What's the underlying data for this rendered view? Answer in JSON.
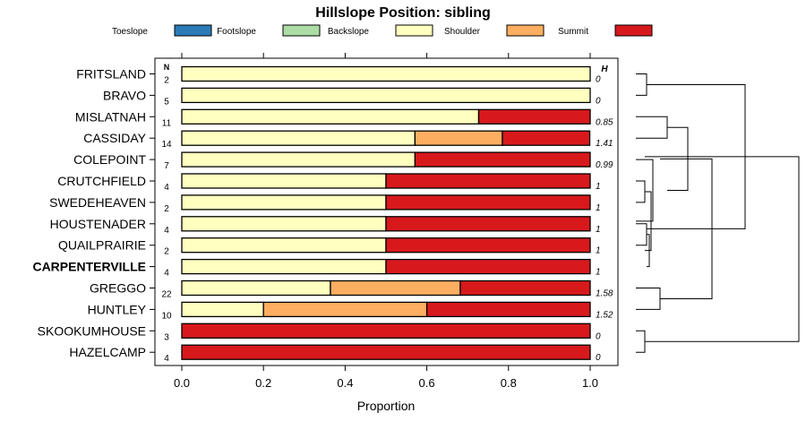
{
  "chart_data": {
    "type": "bar",
    "orientation": "horizontal",
    "stacked": true,
    "title": "Hillslope Position: sibling",
    "xlabel": "Proportion",
    "ylabel": "",
    "xlim": [
      0,
      1
    ],
    "x_ticks": [
      "0.0",
      "0.2",
      "0.4",
      "0.6",
      "0.8",
      "1.0"
    ],
    "n_header": "N",
    "h_header": "H",
    "legend": [
      {
        "name": "Toeslope",
        "color": "#2c7bb6"
      },
      {
        "name": "Footslope",
        "color": "#abdda4"
      },
      {
        "name": "Backslope",
        "color": "#ffffbf"
      },
      {
        "name": "Shoulder",
        "color": "#fdae61"
      },
      {
        "name": "Summit",
        "color": "#d7191c"
      }
    ],
    "categories": [
      "FRITSLAND",
      "BRAVO",
      "MISLATNAH",
      "CASSIDAY",
      "COLEPOINT",
      "CRUTCHFIELD",
      "SWEDEHEAVEN",
      "HOUSTENADER",
      "QUAILPRAIRIE",
      "CARPENTERVILLE",
      "GREGGO",
      "HUNTLEY",
      "SKOOKUMHOUSE",
      "HAZELCAMP"
    ],
    "highlight": "CARPENTERVILLE",
    "n": [
      "2",
      "5",
      "11",
      "14",
      "7",
      "4",
      "2",
      "4",
      "2",
      "4",
      "22",
      "10",
      "3",
      "4"
    ],
    "h": [
      "0",
      "0",
      "0.85",
      "1.41",
      "0.99",
      "1",
      "1",
      "1",
      "1",
      "1",
      "1.58",
      "1.52",
      "0",
      "0"
    ],
    "series": [
      {
        "name": "Toeslope",
        "values": [
          0,
          0,
          0,
          0,
          0,
          0,
          0,
          0,
          0,
          0,
          0,
          0,
          0,
          0
        ]
      },
      {
        "name": "Footslope",
        "values": [
          0,
          0,
          0,
          0,
          0,
          0,
          0,
          0,
          0,
          0,
          0,
          0,
          0,
          0
        ]
      },
      {
        "name": "Backslope",
        "values": [
          1,
          1,
          0.727,
          0.571,
          0.571,
          0.5,
          0.5,
          0.5,
          0.5,
          0.5,
          0.364,
          0.2,
          0,
          0
        ]
      },
      {
        "name": "Shoulder",
        "values": [
          0,
          0,
          0,
          0.214,
          0,
          0,
          0,
          0,
          0,
          0,
          0.318,
          0.4,
          0,
          0
        ]
      },
      {
        "name": "Summit",
        "values": [
          0,
          0,
          0.273,
          0.214,
          0.429,
          0.5,
          0.5,
          0.5,
          0.5,
          0.5,
          0.318,
          0.4,
          1,
          1
        ]
      }
    ],
    "dendrogram": {
      "description": "hierarchical clustering of rows by composition",
      "merges": [
        {
          "a": "FRITSLAND",
          "b": "BRAVO",
          "height": 0
        },
        {
          "a": "MISLATNAH",
          "b": "CASSIDAY",
          "height": 0.12
        },
        {
          "a": "CRUTCHFIELD",
          "b": "SWEDEHEAVEN",
          "height": 0
        },
        {
          "a": "HOUSTENADER",
          "b": "QUAILPRAIRIE",
          "height": 0
        },
        {
          "a": "GREGGO",
          "b": "HUNTLEY",
          "height": 0.08
        },
        {
          "a": "SKOOKUMHOUSE",
          "b": "HAZELCAMP",
          "height": 0
        }
      ]
    }
  }
}
